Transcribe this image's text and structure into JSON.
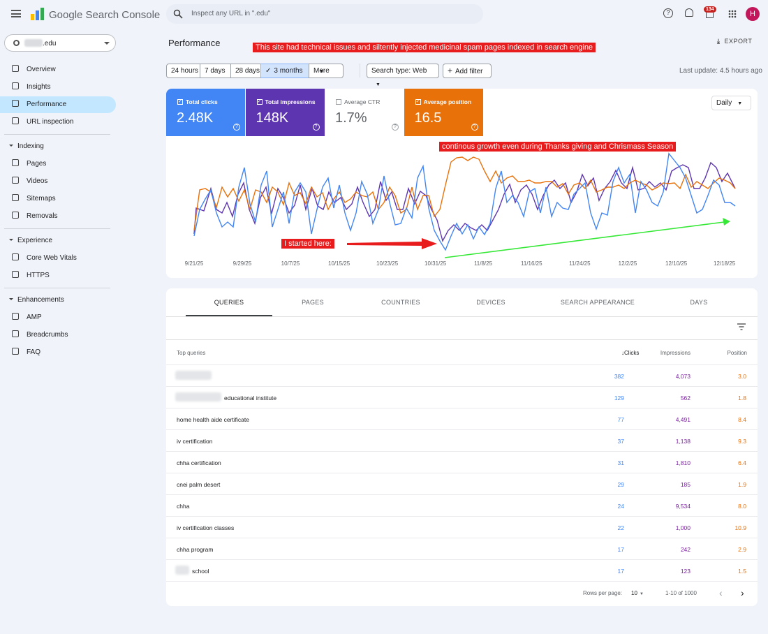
{
  "header": {
    "product": "Google Search Console",
    "search_placeholder": "Inspect any URL in \".edu\"",
    "notifications": "134",
    "avatar": "H"
  },
  "sidebar": {
    "property": ".edu",
    "sections": [
      {
        "title": null,
        "items": [
          "Overview",
          "Insights",
          "Performance",
          "URL inspection"
        ]
      },
      {
        "title": "Indexing",
        "items": [
          "Pages",
          "Videos",
          "Sitemaps",
          "Removals"
        ]
      },
      {
        "title": "Experience",
        "items": [
          "Core Web Vitals",
          "HTTPS"
        ]
      },
      {
        "title": "Enhancements",
        "items": [
          "AMP",
          "Breadcrumbs",
          "FAQ"
        ]
      }
    ],
    "selected": "Performance"
  },
  "toolbar": {
    "title": "Performance",
    "annotation": "This site had technical issues and siltently injected medicinal spam pages indexed in search engine",
    "export": "EXPORT",
    "date_ranges": [
      "24 hours",
      "7 days",
      "28 days",
      "3 months",
      "More"
    ],
    "selected_range": "3 months",
    "search_type": "Search type: Web",
    "add_filter": "Add filter",
    "last_update": "Last update: 4.5 hours ago"
  },
  "metrics": [
    {
      "label": "Total clicks",
      "value": "2.48K",
      "checked": true,
      "color": "#4285f4"
    },
    {
      "label": "Total impressions",
      "value": "148K",
      "checked": true,
      "color": "#5e35b1"
    },
    {
      "label": "Average CTR",
      "value": "1.7%",
      "checked": false,
      "color": null
    },
    {
      "label": "Average position",
      "value": "16.5",
      "checked": true,
      "color": "#e8710a"
    }
  ],
  "granularity": "Daily",
  "chart": {
    "x_labels": [
      "9/21/25",
      "9/29/25",
      "10/7/25",
      "10/15/25",
      "10/23/25",
      "10/31/25",
      "11/8/25",
      "11/16/25",
      "11/24/25",
      "12/2/25",
      "12/10/25",
      "12/18/25"
    ],
    "annotations": [
      "continous growth even during Thanks giving and Chrismass Season",
      "I started here:"
    ]
  },
  "tabs": [
    "QUERIES",
    "PAGES",
    "COUNTRIES",
    "DEVICES",
    "SEARCH APPEARANCE",
    "DAYS"
  ],
  "table": {
    "headers": [
      "Top queries",
      "Clicks",
      "Impressions",
      "Position"
    ],
    "rows": [
      [
        "",
        "382",
        "4,073",
        "3.0"
      ],
      [
        "educational institute",
        "129",
        "562",
        "1.8"
      ],
      [
        "home health aide certificate",
        "77",
        "4,491",
        "8.4"
      ],
      [
        "iv certification",
        "37",
        "1,138",
        "9.3"
      ],
      [
        "chha certification",
        "31",
        "1,810",
        "6.4"
      ],
      [
        "cnei palm desert",
        "29",
        "185",
        "1.9"
      ],
      [
        "chha",
        "24",
        "9,534",
        "8.0"
      ],
      [
        "iv certification classes",
        "22",
        "1,000",
        "10.9"
      ],
      [
        "chha program",
        "17",
        "242",
        "2.9"
      ],
      [
        "school",
        "17",
        "123",
        "1.5"
      ]
    ],
    "footer": {
      "rows_per_page_label": "Rows per page:",
      "rows_per_page": "10",
      "range": "1-10 of 1000"
    }
  }
}
